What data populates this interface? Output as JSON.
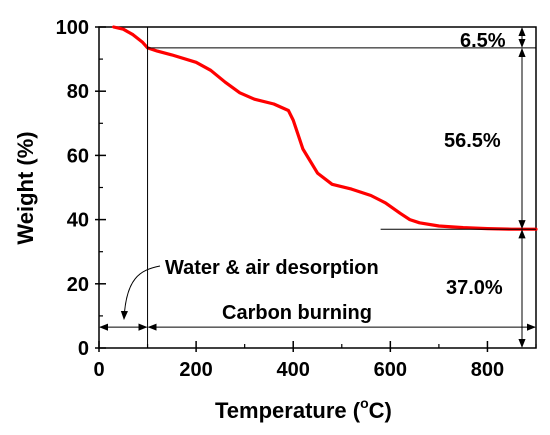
{
  "chart_data": {
    "type": "line",
    "xlabel": "Temperature (",
    "xlabel_degree": "o",
    "xlabel_unit": "C)",
    "ylabel": "Weight (%)",
    "xlim": [
      0,
      900
    ],
    "ylim": [
      0,
      100
    ],
    "xticks": [
      "0",
      "200",
      "400",
      "600",
      "800"
    ],
    "yticks": [
      "0",
      "20",
      "40",
      "60",
      "80",
      "100"
    ],
    "series": [
      {
        "color": "#ff0000",
        "x": [
          30,
          50,
          70,
          90,
          100,
          120,
          150,
          200,
          230,
          260,
          290,
          320,
          360,
          390,
          400,
          420,
          450,
          480,
          520,
          560,
          590,
          620,
          640,
          660,
          700,
          750,
          800,
          850,
          900
        ],
        "y": [
          100,
          99.3,
          97.6,
          95.2,
          93.5,
          92.5,
          91.3,
          89,
          86.5,
          82.8,
          79.5,
          77.5,
          76,
          74,
          71,
          62,
          54.5,
          51,
          49.5,
          47.5,
          45.2,
          42,
          40,
          39,
          38,
          37.5,
          37.2,
          37.0,
          37.0
        ]
      }
    ],
    "annotations": {
      "pct_top": "6.5%",
      "pct_mid": "56.5%",
      "pct_bottom": "37.0%",
      "water": "Water & air desorption",
      "carbon": "Carbon burning"
    },
    "reference_levels": {
      "after_desorption_x": 100,
      "after_desorption_y": 93.5,
      "residue_y": 37.0,
      "residue_start_x": 580,
      "arrow_row_y": 6.5
    }
  }
}
